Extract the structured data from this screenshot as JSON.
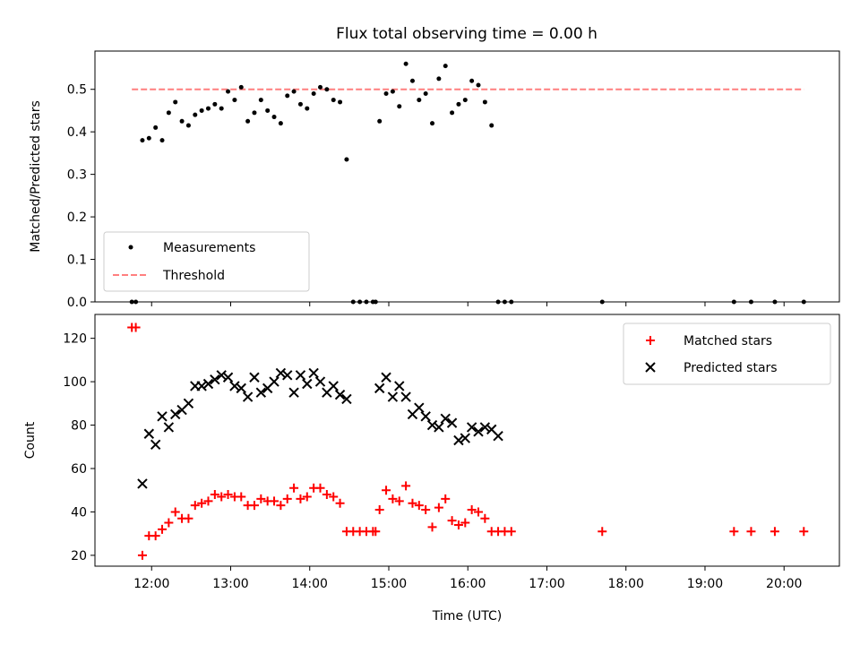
{
  "title": "Flux total observing time = 0.00 h",
  "colors": {
    "measurements": "#000000",
    "threshold": "#ff7f7f",
    "matched": "#ff0000",
    "predicted": "#000000"
  },
  "chart_data": [
    {
      "type": "scatter",
      "panel": "top",
      "title": "Flux total observing time = 0.00 h",
      "ylabel": "Matched/Predicted stars",
      "xlim": [
        "11:17",
        "20:42"
      ],
      "ylim": [
        0,
        0.59
      ],
      "yticks": [
        0.0,
        0.1,
        0.2,
        0.3,
        0.4,
        0.5
      ],
      "yticklabels": [
        "0.0",
        "0.1",
        "0.2",
        "0.3",
        "0.4",
        "0.5"
      ],
      "legend": {
        "placement": "lower-left",
        "entries": [
          "Measurements",
          "Threshold"
        ]
      },
      "series": [
        {
          "name": "Measurements",
          "marker": "dot",
          "x": [
            "11:45",
            "11:48",
            "11:53",
            "11:58",
            "12:03",
            "12:08",
            "12:13",
            "12:18",
            "12:23",
            "12:28",
            "12:33",
            "12:38",
            "12:43",
            "12:48",
            "12:53",
            "12:58",
            "13:03",
            "13:08",
            "13:13",
            "13:18",
            "13:23",
            "13:28",
            "13:33",
            "13:38",
            "13:43",
            "13:48",
            "13:53",
            "13:58",
            "14:03",
            "14:08",
            "14:13",
            "14:18",
            "14:23",
            "14:28",
            "14:33",
            "14:38",
            "14:43",
            "14:48",
            "14:50",
            "14:53",
            "14:58",
            "15:03",
            "15:08",
            "15:13",
            "15:18",
            "15:23",
            "15:28",
            "15:33",
            "15:38",
            "15:43",
            "15:48",
            "15:53",
            "15:58",
            "16:03",
            "16:08",
            "16:13",
            "16:18",
            "16:23",
            "16:28",
            "16:33",
            "17:42",
            "19:22",
            "19:35",
            "19:53",
            "20:15"
          ],
          "y": [
            0,
            0,
            0.38,
            0.385,
            0.41,
            0.38,
            0.445,
            0.47,
            0.425,
            0.415,
            0.44,
            0.45,
            0.455,
            0.465,
            0.455,
            0.495,
            0.475,
            0.505,
            0.425,
            0.445,
            0.475,
            0.45,
            0.435,
            0.42,
            0.485,
            0.495,
            0.465,
            0.455,
            0.49,
            0.505,
            0.5,
            0.475,
            0.47,
            0.335,
            0,
            0,
            0,
            0,
            0,
            0.425,
            0.49,
            0.495,
            0.46,
            0.56,
            0.52,
            0.475,
            0.49,
            0.42,
            0.525,
            0.555,
            0.445,
            0.465,
            0.475,
            0.52,
            0.51,
            0.47,
            0.415,
            0,
            0,
            0,
            0,
            0,
            0,
            0,
            0
          ]
        },
        {
          "name": "Threshold",
          "style": "dashed-line",
          "x": [
            "11:45",
            "20:15"
          ],
          "y": [
            0.5,
            0.5
          ]
        }
      ]
    },
    {
      "type": "scatter",
      "panel": "bottom",
      "xlabel": "Time (UTC)",
      "ylabel": "Count",
      "xlim": [
        "11:17",
        "20:42"
      ],
      "ylim": [
        15,
        131
      ],
      "xticks": [
        "12:00",
        "13:00",
        "14:00",
        "15:00",
        "16:00",
        "17:00",
        "18:00",
        "19:00",
        "20:00"
      ],
      "yticks": [
        20,
        40,
        60,
        80,
        100,
        120
      ],
      "legend": {
        "placement": "top-right",
        "entries": [
          "Matched stars",
          "Predicted stars"
        ]
      },
      "series": [
        {
          "name": "Matched stars",
          "marker": "plus",
          "x": [
            "11:45",
            "11:48",
            "11:53",
            "11:58",
            "12:03",
            "12:08",
            "12:13",
            "12:18",
            "12:23",
            "12:28",
            "12:33",
            "12:38",
            "12:43",
            "12:48",
            "12:53",
            "12:58",
            "13:03",
            "13:08",
            "13:13",
            "13:18",
            "13:23",
            "13:28",
            "13:33",
            "13:38",
            "13:43",
            "13:48",
            "13:53",
            "13:58",
            "14:03",
            "14:08",
            "14:13",
            "14:18",
            "14:23",
            "14:28",
            "14:33",
            "14:38",
            "14:43",
            "14:48",
            "14:50",
            "14:53",
            "14:58",
            "15:03",
            "15:08",
            "15:13",
            "15:18",
            "15:23",
            "15:28",
            "15:33",
            "15:38",
            "15:43",
            "15:48",
            "15:53",
            "15:58",
            "16:03",
            "16:08",
            "16:13",
            "16:18",
            "16:23",
            "16:28",
            "16:33",
            "17:42",
            "19:22",
            "19:35",
            "19:53",
            "20:15"
          ],
          "y": [
            125,
            125,
            20,
            29,
            29,
            32,
            35,
            40,
            37,
            37,
            43,
            44,
            45,
            48,
            47,
            48,
            47,
            47,
            43,
            43,
            46,
            45,
            45,
            43,
            46,
            51,
            46,
            47,
            51,
            51,
            48,
            47,
            44,
            31,
            31,
            31,
            31,
            31,
            31,
            41,
            50,
            46,
            45,
            52,
            44,
            43,
            41,
            33,
            42,
            46,
            36,
            34,
            35,
            41,
            40,
            37,
            31,
            31,
            31,
            31,
            31,
            31,
            31,
            31,
            31
          ]
        },
        {
          "name": "Predicted stars",
          "marker": "x",
          "x": [
            "11:53",
            "11:58",
            "12:03",
            "12:08",
            "12:13",
            "12:18",
            "12:23",
            "12:28",
            "12:33",
            "12:38",
            "12:43",
            "12:48",
            "12:53",
            "12:58",
            "13:03",
            "13:08",
            "13:13",
            "13:18",
            "13:23",
            "13:28",
            "13:33",
            "13:38",
            "13:43",
            "13:48",
            "13:53",
            "13:58",
            "14:03",
            "14:08",
            "14:13",
            "14:18",
            "14:23",
            "14:28",
            "14:53",
            "14:58",
            "15:03",
            "15:08",
            "15:13",
            "15:18",
            "15:23",
            "15:28",
            "15:33",
            "15:38",
            "15:43",
            "15:48",
            "15:53",
            "15:58",
            "16:03",
            "16:08",
            "16:13",
            "16:18",
            "16:23"
          ],
          "y": [
            53,
            76,
            71,
            84,
            79,
            85,
            87,
            90,
            98,
            98,
            99,
            101,
            103,
            102,
            98,
            97,
            93,
            102,
            95,
            97,
            100,
            104,
            103,
            95,
            103,
            99,
            104,
            100,
            95,
            98,
            94,
            92,
            97,
            102,
            93,
            98,
            93,
            85,
            88,
            84,
            80,
            79,
            83,
            81,
            73,
            74,
            79,
            77,
            79,
            78,
            75
          ]
        }
      ]
    }
  ]
}
